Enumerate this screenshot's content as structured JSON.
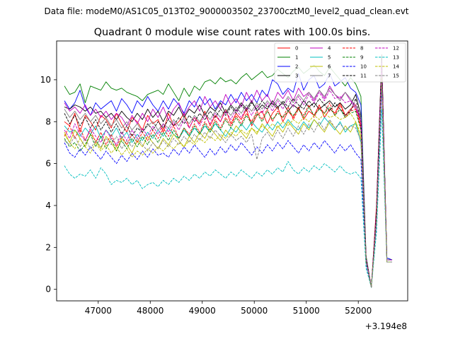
{
  "chart_data": {
    "type": "line",
    "suptitle": "Data file: modeM0/AS1C05_013T02_9000003502_23700cztM0_level2_quad_clean.evt",
    "title": "Quadrant 0 module wise count rates with 100.0s bins.",
    "xlabel": "",
    "ylabel": "",
    "x_offset_label": "+3.194e8",
    "xlim": [
      46200,
      52950
    ],
    "ylim": [
      -0.55,
      11.85
    ],
    "xticks": [
      47000,
      48000,
      49000,
      50000,
      51000,
      52000
    ],
    "yticks": [
      0,
      2,
      4,
      6,
      8,
      10
    ],
    "x": [
      46350,
      46450,
      46550,
      46650,
      46750,
      46850,
      46950,
      47050,
      47150,
      47250,
      47350,
      47450,
      47550,
      47650,
      47750,
      47850,
      47950,
      48050,
      48150,
      48250,
      48350,
      48450,
      48550,
      48650,
      48750,
      48850,
      48950,
      49050,
      49150,
      49250,
      49350,
      49450,
      49550,
      49650,
      49750,
      49850,
      49950,
      50050,
      50150,
      50250,
      50350,
      50450,
      50550,
      50650,
      50750,
      50850,
      50950,
      51050,
      51150,
      51250,
      51350,
      51450,
      51550,
      51650,
      51750,
      51850,
      51950,
      52050,
      52150,
      52250,
      52350,
      52450,
      52550,
      52650
    ],
    "legend_loc": "upper right",
    "legend_ncol": 4,
    "series": [
      {
        "name": "0",
        "color": "#ff0000",
        "dash": "solid",
        "values": [
          8.0,
          7.8,
          8.4,
          7.5,
          8.3,
          8.0,
          7.6,
          8.3,
          8.1,
          7.7,
          8.4,
          7.9,
          7.5,
          8.2,
          8.0,
          7.6,
          8.3,
          7.9,
          8.1,
          7.5,
          8.4,
          7.8,
          8.0,
          8.4,
          7.7,
          8.2,
          7.9,
          8.5,
          7.8,
          8.3,
          8.0,
          8.6,
          7.9,
          8.4,
          8.1,
          8.6,
          7.8,
          8.3,
          8.5,
          7.9,
          8.4,
          8.7,
          8.0,
          8.5,
          8.2,
          8.7,
          8.1,
          8.5,
          8.3,
          8.8,
          8.2,
          8.6,
          8.4,
          8.9,
          8.3,
          8.6,
          8.8,
          7.8,
          1.5,
          0.1,
          4.0,
          11.0,
          1.4,
          1.4
        ]
      },
      {
        "name": "1",
        "color": "#008000",
        "dash": "solid",
        "values": [
          9.7,
          9.3,
          9.4,
          9.8,
          8.9,
          9.7,
          9.6,
          9.5,
          9.9,
          9.6,
          9.5,
          9.6,
          9.4,
          9.3,
          9.2,
          9.0,
          9.3,
          9.4,
          9.5,
          9.3,
          9.8,
          9.4,
          9.0,
          9.6,
          9.2,
          9.7,
          9.5,
          9.9,
          10.0,
          9.8,
          10.1,
          9.9,
          10.0,
          9.8,
          10.1,
          10.3,
          10.0,
          10.2,
          10.4,
          10.1,
          10.2,
          10.5,
          10.3,
          10.1,
          10.4,
          10.6,
          10.3,
          10.5,
          10.7,
          10.4,
          10.2,
          10.6,
          10.3,
          10.0,
          9.7,
          10.1,
          9.8,
          9.2,
          1.6,
          0.1,
          3.5,
          11.1,
          1.5,
          1.4
        ]
      },
      {
        "name": "2",
        "color": "#0000ff",
        "dash": "solid",
        "values": [
          9.0,
          8.6,
          8.9,
          9.5,
          8.7,
          8.3,
          8.9,
          8.6,
          8.8,
          9.0,
          8.5,
          9.1,
          8.8,
          8.4,
          9.0,
          8.7,
          9.2,
          8.8,
          8.5,
          9.0,
          8.6,
          9.1,
          8.8,
          8.4,
          9.0,
          8.7,
          9.2,
          8.8,
          9.1,
          8.6,
          9.0,
          8.8,
          9.3,
          8.9,
          9.4,
          9.0,
          9.3,
          8.9,
          9.5,
          9.2,
          10.0,
          9.8,
          9.3,
          9.6,
          9.4,
          10.3,
          9.5,
          10.0,
          10.2,
          9.6,
          9.8,
          10.3,
          9.7,
          9.9,
          10.1,
          9.6,
          9.4,
          8.8,
          1.4,
          0.1,
          3.6,
          10.8,
          1.5,
          1.4
        ]
      },
      {
        "name": "3",
        "color": "#000000",
        "dash": "solid",
        "values": [
          8.7,
          8.6,
          8.8,
          8.7,
          8.5,
          8.7,
          8.4,
          8.5,
          8.2,
          8.4,
          8.1,
          8.5,
          8.2,
          8.0,
          8.4,
          8.1,
          8.6,
          8.2,
          8.5,
          8.0,
          8.5,
          8.3,
          8.7,
          8.2,
          8.6,
          8.4,
          8.8,
          8.3,
          8.7,
          8.5,
          8.9,
          8.4,
          8.8,
          8.5,
          8.9,
          8.6,
          9.0,
          8.5,
          8.8,
          8.6,
          9.0,
          8.7,
          8.9,
          8.5,
          8.8,
          8.6,
          9.0,
          8.7,
          8.9,
          8.6,
          8.8,
          9.0,
          8.7,
          8.9,
          8.6,
          8.8,
          9.3,
          8.3,
          1.5,
          0.1,
          3.8,
          11.2,
          1.4,
          1.4
        ]
      },
      {
        "name": "4",
        "color": "#bf00bf",
        "dash": "solid",
        "values": [
          8.9,
          8.5,
          8.7,
          8.4,
          8.8,
          8.3,
          8.6,
          8.2,
          8.5,
          8.1,
          8.4,
          8.2,
          7.8,
          8.3,
          7.9,
          8.4,
          8.0,
          8.6,
          8.2,
          8.7,
          8.1,
          8.6,
          8.9,
          8.3,
          8.7,
          9.0,
          8.5,
          9.2,
          8.7,
          9.0,
          8.6,
          9.3,
          8.8,
          9.1,
          8.7,
          9.4,
          8.9,
          9.5,
          9.0,
          9.3,
          8.8,
          9.4,
          9.1,
          9.5,
          9.0,
          9.6,
          9.2,
          9.4,
          9.0,
          9.5,
          9.1,
          9.7,
          9.3,
          9.1,
          9.4,
          9.0,
          8.6,
          8.1,
          1.5,
          0.1,
          3.7,
          10.9,
          1.4,
          1.4
        ]
      },
      {
        "name": "5",
        "color": "#00bfbf",
        "dash": "solid",
        "values": [
          7.8,
          7.5,
          7.6,
          7.3,
          7.7,
          7.4,
          7.8,
          7.2,
          7.6,
          7.3,
          7.7,
          7.2,
          7.5,
          7.0,
          7.4,
          7.1,
          7.5,
          7.2,
          7.6,
          7.3,
          7.7,
          7.4,
          7.2,
          7.6,
          7.3,
          7.7,
          7.4,
          7.8,
          7.5,
          7.9,
          7.6,
          7.3,
          7.7,
          7.5,
          7.9,
          7.6,
          8.0,
          7.7,
          7.5,
          7.9,
          7.6,
          8.0,
          7.7,
          8.1,
          7.8,
          7.6,
          8.0,
          7.7,
          8.1,
          7.8,
          8.2,
          7.9,
          7.6,
          8.0,
          7.5,
          7.8,
          7.9,
          7.0,
          1.3,
          0.1,
          3.3,
          10.2,
          1.3,
          1.3
        ]
      },
      {
        "name": "6",
        "color": "#bfbf00",
        "dash": "solid",
        "values": [
          7.5,
          7.0,
          7.6,
          7.2,
          6.8,
          7.4,
          7.1,
          6.7,
          7.3,
          7.0,
          6.6,
          7.2,
          6.9,
          6.5,
          7.1,
          6.8,
          7.3,
          7.0,
          6.7,
          7.2,
          6.9,
          7.4,
          7.1,
          6.8,
          7.3,
          7.0,
          7.5,
          7.2,
          7.7,
          7.4,
          7.1,
          7.6,
          7.3,
          7.8,
          7.5,
          7.2,
          7.7,
          7.4,
          7.9,
          7.6,
          7.3,
          7.8,
          7.5,
          8.0,
          7.7,
          7.4,
          7.9,
          7.6,
          8.1,
          7.8,
          7.5,
          8.0,
          7.7,
          7.4,
          7.8,
          7.5,
          8.0,
          7.2,
          1.4,
          0.1,
          3.4,
          10.4,
          1.3,
          1.3
        ]
      },
      {
        "name": "7",
        "color": "#808080",
        "dash": "solid",
        "values": [
          8.6,
          8.2,
          8.5,
          8.1,
          8.4,
          8.0,
          8.3,
          7.9,
          8.2,
          7.8,
          8.1,
          7.7,
          8.0,
          7.6,
          7.9,
          7.5,
          7.8,
          8.0,
          7.6,
          7.9,
          7.7,
          8.1,
          7.8,
          8.2,
          7.9,
          8.3,
          8.0,
          8.4,
          8.1,
          8.5,
          8.2,
          8.6,
          8.3,
          8.7,
          8.4,
          8.8,
          8.5,
          8.9,
          8.6,
          9.0,
          8.7,
          9.1,
          8.8,
          9.2,
          8.9,
          9.3,
          9.0,
          9.4,
          9.1,
          9.5,
          9.2,
          9.6,
          9.3,
          9.0,
          9.4,
          9.1,
          8.7,
          8.2,
          1.5,
          0.1,
          3.6,
          10.7,
          1.4,
          1.4
        ]
      },
      {
        "name": "8",
        "color": "#ff0000",
        "dash": "dashed",
        "values": [
          7.3,
          7.8,
          7.2,
          7.7,
          7.1,
          7.6,
          7.0,
          7.5,
          6.9,
          7.4,
          6.8,
          7.3,
          6.9,
          7.4,
          7.0,
          7.5,
          7.1,
          7.6,
          7.2,
          7.7,
          7.3,
          7.8,
          7.2,
          7.7,
          7.4,
          7.9,
          7.5,
          8.0,
          7.6,
          8.1,
          7.7,
          8.2,
          7.8,
          8.3,
          7.9,
          8.4,
          8.0,
          8.5,
          8.1,
          8.6,
          8.0,
          8.5,
          8.2,
          8.7,
          8.1,
          8.6,
          8.3,
          8.8,
          8.2,
          8.7,
          8.4,
          8.9,
          8.3,
          8.8,
          8.2,
          8.5,
          8.6,
          7.7,
          1.4,
          0.1,
          3.5,
          10.6,
          1.4,
          1.4
        ]
      },
      {
        "name": "9",
        "color": "#008000",
        "dash": "dashed",
        "values": [
          7.2,
          6.8,
          7.0,
          6.6,
          6.9,
          7.4,
          6.8,
          7.3,
          6.7,
          7.2,
          6.6,
          7.1,
          6.7,
          7.2,
          6.8,
          7.3,
          6.9,
          7.4,
          7.0,
          7.5,
          7.1,
          7.6,
          7.2,
          7.7,
          7.3,
          7.8,
          7.4,
          7.9,
          7.5,
          8.0,
          7.6,
          8.1,
          7.7,
          8.2,
          7.8,
          8.3,
          7.9,
          8.4,
          8.0,
          8.5,
          8.1,
          8.4,
          8.2,
          8.5,
          8.3,
          8.6,
          8.2,
          8.7,
          8.3,
          8.6,
          8.4,
          8.7,
          8.3,
          8.6,
          8.2,
          8.4,
          8.5,
          7.6,
          1.4,
          0.1,
          3.4,
          10.5,
          1.4,
          1.4
        ]
      },
      {
        "name": "10",
        "color": "#0000ff",
        "dash": "dashed",
        "values": [
          7.0,
          6.5,
          6.3,
          6.7,
          6.4,
          6.8,
          6.5,
          6.2,
          6.6,
          6.3,
          6.0,
          6.4,
          6.1,
          6.5,
          6.2,
          6.6,
          6.3,
          6.7,
          6.4,
          6.5,
          6.3,
          6.7,
          6.4,
          6.8,
          6.5,
          6.9,
          6.6,
          6.3,
          6.7,
          6.4,
          6.8,
          6.5,
          6.9,
          6.6,
          7.0,
          6.7,
          6.4,
          6.8,
          6.5,
          6.9,
          6.6,
          7.0,
          6.7,
          7.1,
          6.8,
          6.5,
          6.9,
          6.6,
          7.0,
          6.7,
          7.1,
          6.8,
          6.5,
          6.9,
          6.6,
          6.9,
          6.5,
          6.2,
          1.2,
          0.1,
          3.1,
          9.6,
          1.3,
          1.3
        ]
      },
      {
        "name": "11",
        "color": "#000000",
        "dash": "dashed",
        "values": [
          8.4,
          7.9,
          8.3,
          7.8,
          8.2,
          7.7,
          8.1,
          7.6,
          8.0,
          7.5,
          7.9,
          7.4,
          7.8,
          7.3,
          7.7,
          7.5,
          7.9,
          7.6,
          8.0,
          7.7,
          8.1,
          7.8,
          8.2,
          7.9,
          8.3,
          8.0,
          8.4,
          8.1,
          8.5,
          8.2,
          8.6,
          8.3,
          8.7,
          8.4,
          8.8,
          8.5,
          8.9,
          8.6,
          9.0,
          8.7,
          8.9,
          8.6,
          9.0,
          8.7,
          9.1,
          8.8,
          8.6,
          9.0,
          8.7,
          9.1,
          8.8,
          8.5,
          8.9,
          8.6,
          8.3,
          8.5,
          9.1,
          8.0,
          1.5,
          0.1,
          3.7,
          10.9,
          1.4,
          1.4
        ]
      },
      {
        "name": "12",
        "color": "#bf00bf",
        "dash": "dashed",
        "values": [
          7.6,
          7.2,
          7.9,
          7.4,
          7.1,
          7.7,
          7.3,
          7.0,
          7.6,
          7.2,
          6.9,
          7.5,
          7.1,
          7.6,
          7.2,
          7.7,
          7.3,
          7.8,
          7.4,
          7.9,
          7.5,
          8.0,
          7.6,
          8.1,
          7.7,
          8.2,
          7.8,
          8.3,
          7.9,
          8.4,
          8.0,
          8.5,
          8.1,
          8.6,
          8.2,
          8.7,
          8.3,
          8.8,
          8.4,
          8.9,
          8.5,
          9.0,
          8.6,
          9.1,
          8.7,
          9.2,
          8.8,
          9.3,
          8.9,
          9.4,
          9.0,
          9.5,
          9.1,
          9.2,
          8.9,
          9.0,
          8.8,
          8.0,
          1.5,
          0.1,
          3.6,
          10.8,
          1.4,
          1.4
        ]
      },
      {
        "name": "13",
        "color": "#00bfbf",
        "dash": "dashed",
        "values": [
          5.9,
          5.5,
          5.3,
          5.5,
          5.4,
          5.7,
          5.3,
          5.8,
          5.5,
          5.0,
          5.2,
          5.1,
          5.3,
          5.0,
          5.2,
          4.8,
          5.0,
          5.1,
          4.9,
          5.2,
          5.0,
          5.3,
          5.1,
          5.4,
          5.2,
          5.5,
          5.3,
          5.6,
          5.4,
          5.7,
          5.5,
          5.3,
          5.6,
          5.4,
          5.7,
          5.5,
          5.3,
          5.6,
          5.4,
          5.7,
          5.5,
          5.8,
          5.6,
          6.1,
          5.7,
          5.5,
          5.8,
          5.6,
          5.9,
          5.7,
          6.0,
          5.8,
          5.6,
          5.9,
          5.6,
          5.5,
          5.6,
          5.3,
          1.0,
          0.1,
          2.7,
          8.6,
          1.3,
          1.3
        ]
      },
      {
        "name": "14",
        "color": "#bfbf00",
        "dash": "dashed",
        "values": [
          7.4,
          7.0,
          6.7,
          7.2,
          6.8,
          6.5,
          7.0,
          6.6,
          6.9,
          6.5,
          6.8,
          6.4,
          6.7,
          6.3,
          6.6,
          6.4,
          6.7,
          6.5,
          6.8,
          6.6,
          6.9,
          6.7,
          7.0,
          6.8,
          7.1,
          6.9,
          7.2,
          7.0,
          7.3,
          7.1,
          7.4,
          7.2,
          7.5,
          7.3,
          7.6,
          7.4,
          7.7,
          7.5,
          7.8,
          7.6,
          7.9,
          7.7,
          8.0,
          7.8,
          8.1,
          7.9,
          8.2,
          8.0,
          8.3,
          8.1,
          8.4,
          8.2,
          8.3,
          8.1,
          8.2,
          8.4,
          8.0,
          7.4,
          1.3,
          0.1,
          3.3,
          10.1,
          1.3,
          1.3
        ]
      },
      {
        "name": "15",
        "color": "#808080",
        "dash": "dashed",
        "values": [
          7.1,
          6.9,
          7.3,
          6.8,
          7.2,
          6.7,
          7.1,
          6.8,
          7.2,
          6.9,
          7.3,
          6.7,
          7.1,
          6.8,
          7.2,
          6.9,
          6.6,
          7.0,
          6.7,
          7.1,
          6.8,
          7.2,
          6.9,
          7.3,
          7.0,
          7.4,
          7.1,
          7.5,
          7.2,
          7.6,
          7.3,
          7.0,
          7.4,
          7.1,
          7.3,
          7.0,
          7.4,
          6.2,
          7.2,
          7.5,
          7.1,
          7.6,
          7.2,
          7.7,
          7.3,
          7.8,
          7.4,
          7.9,
          7.5,
          8.0,
          7.6,
          8.1,
          7.7,
          7.9,
          7.6,
          7.8,
          7.7,
          7.1,
          1.3,
          0.1,
          3.2,
          9.9,
          1.3,
          1.3
        ]
      }
    ]
  }
}
